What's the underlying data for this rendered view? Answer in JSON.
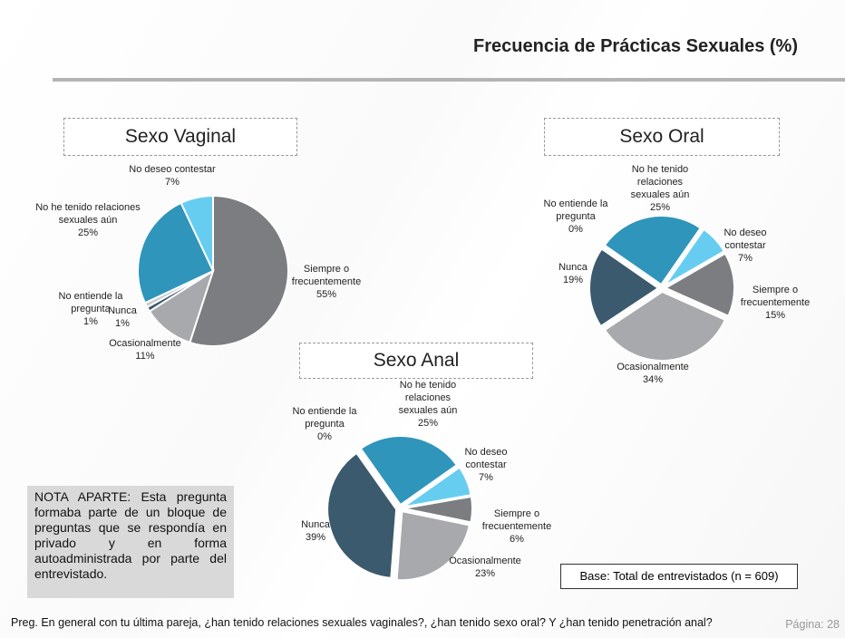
{
  "title": "Frecuencia de Prácticas Sexuales (%)",
  "chart_data": [
    {
      "type": "pie",
      "title": "Sexo Vaginal",
      "categories": [
        "Siempre o frecuentemente",
        "Ocasionalmente",
        "Nunca",
        "No entiende la pregunta",
        "No he tenido relaciones sexuales aún",
        "No deseo contestar"
      ],
      "values": [
        55,
        11,
        1,
        1,
        25,
        7
      ],
      "value_labels": [
        "55%",
        "11%",
        "1%",
        "1%",
        "25%",
        "7%"
      ],
      "colors": [
        "#7b7d81",
        "#a7a9ac",
        "#3b5a6d",
        "#c9cbce",
        "#2f95ba",
        "#66cdf1"
      ]
    },
    {
      "type": "pie",
      "title": "Sexo Oral",
      "categories": [
        "Siempre o frecuentemente",
        "Ocasionalmente",
        "Nunca",
        "No entiende la pregunta",
        "No he tenido relaciones sexuales aún",
        "No deseo contestar"
      ],
      "values": [
        15,
        34,
        19,
        0,
        25,
        7
      ],
      "value_labels": [
        "15%",
        "34%",
        "19%",
        "0%",
        "25%",
        "7%"
      ],
      "colors": [
        "#7b7d81",
        "#a7a9ac",
        "#3b5a6d",
        "#c9cbce",
        "#2f95ba",
        "#66cdf1"
      ]
    },
    {
      "type": "pie",
      "title": "Sexo Anal",
      "categories": [
        "Siempre o frecuentemente",
        "Ocasionalmente",
        "Nunca",
        "No entiende la pregunta",
        "No he tenido relaciones sexuales aún",
        "No deseo contestar"
      ],
      "values": [
        6,
        23,
        39,
        0,
        25,
        7
      ],
      "value_labels": [
        "6%",
        "23%",
        "39%",
        "0%",
        "25%",
        "7%"
      ],
      "colors": [
        "#7b7d81",
        "#a7a9ac",
        "#3b5a6d",
        "#c9cbce",
        "#2f95ba",
        "#66cdf1"
      ]
    }
  ],
  "note": "NOTA APARTE: Esta pregunta formaba parte de un bloque de preguntas que se respondía en privado y en forma autoadministrada por parte del entrevistado.",
  "base": "Base: Total de entrevistados (n = 609)",
  "question": "Preg. En general con tu última pareja, ¿han tenido relaciones sexuales vaginales?, ¿han tenido sexo oral? Y ¿han tenido penetración anal?",
  "page": "Página: 28"
}
